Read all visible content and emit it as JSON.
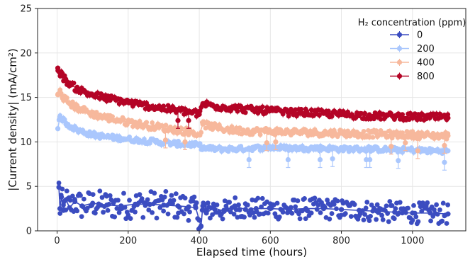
{
  "chart_data": {
    "type": "scatter",
    "xlabel": "Elapsed time (hours)",
    "ylabel": "|Current density| (mA/cm²)",
    "xlim": [
      -55,
      1150
    ],
    "ylim": [
      0,
      25
    ],
    "x_ticks": [
      0,
      200,
      400,
      600,
      800,
      1000
    ],
    "y_ticks": [
      0,
      5,
      10,
      15,
      20,
      25
    ],
    "grid": true,
    "legend": {
      "title": "H₂ concentration (ppm)",
      "placement": "top-right"
    },
    "series": [
      {
        "name": "0",
        "color": "#3b4cc0",
        "x": [
          5,
          8,
          12,
          18,
          25,
          35,
          50,
          70,
          100,
          140,
          180,
          220,
          260,
          300,
          340,
          370,
          390,
          400,
          405,
          410,
          420,
          440,
          470,
          500,
          530,
          560,
          600,
          650,
          700,
          750,
          800,
          850,
          900,
          950,
          1000,
          1050,
          1100
        ],
        "y": [
          4.9,
          2.5,
          3.8,
          2.3,
          3.5,
          2.6,
          3.3,
          2.8,
          3.1,
          2.9,
          2.8,
          3.0,
          3.0,
          2.9,
          2.8,
          2.7,
          2.6,
          1.2,
          0.5,
          2.8,
          2.0,
          2.6,
          2.2,
          2.8,
          2.4,
          2.5,
          2.5,
          2.4,
          2.5,
          2.5,
          2.4,
          2.3,
          2.2,
          2.1,
          2.0,
          2.0,
          1.9
        ],
        "scatter_range": 1.2
      },
      {
        "name": "200",
        "color": "#aac7fd",
        "x": [
          2,
          8,
          15,
          25,
          40,
          60,
          90,
          130,
          180,
          230,
          280,
          330,
          380,
          400,
          410,
          450,
          500,
          550,
          600,
          650,
          700,
          750,
          800,
          850,
          900,
          950,
          1000,
          1050,
          1100
        ],
        "y": [
          11.5,
          12.8,
          12.6,
          12.1,
          11.7,
          11.3,
          10.9,
          10.6,
          10.4,
          10.2,
          10.0,
          9.8,
          9.7,
          9.6,
          9.3,
          9.2,
          9.2,
          9.3,
          9.4,
          9.3,
          9.3,
          9.3,
          9.2,
          9.2,
          9.2,
          9.1,
          9.1,
          9.0,
          9.0
        ],
        "outliers": [
          [
            540,
            8.0
          ],
          [
            650,
            8.0
          ],
          [
            740,
            8.0
          ],
          [
            775,
            8.1
          ],
          [
            870,
            8.0
          ],
          [
            880,
            8.0
          ],
          [
            960,
            7.9
          ],
          [
            1090,
            7.7
          ]
        ],
        "scatter_range": 0.3
      },
      {
        "name": "400",
        "color": "#f7b89c",
        "x": [
          2,
          8,
          15,
          25,
          40,
          60,
          90,
          130,
          180,
          230,
          280,
          330,
          380,
          400,
          410,
          450,
          500,
          550,
          600,
          650,
          700,
          750,
          800,
          850,
          900,
          950,
          1000,
          1050,
          1100
        ],
        "y": [
          15.3,
          15.6,
          15.1,
          14.7,
          14.2,
          13.8,
          13.3,
          12.8,
          12.4,
          12.0,
          11.7,
          11.4,
          11.1,
          10.8,
          12.0,
          11.6,
          11.3,
          11.2,
          11.2,
          11.1,
          11.1,
          11.0,
          11.0,
          10.9,
          10.9,
          10.8,
          10.8,
          10.7,
          10.7
        ],
        "outliers": [
          [
            305,
            10.2
          ],
          [
            360,
            10.0
          ],
          [
            590,
            9.9
          ],
          [
            615,
            10.0
          ],
          [
            940,
            9.5
          ],
          [
            980,
            9.9
          ],
          [
            1015,
            9.0
          ],
          [
            1090,
            9.6
          ]
        ],
        "scatter_range": 0.4
      },
      {
        "name": "800",
        "color": "#b40426",
        "x": [
          2,
          8,
          15,
          25,
          40,
          60,
          90,
          130,
          180,
          230,
          280,
          330,
          380,
          400,
          410,
          450,
          500,
          550,
          600,
          650,
          700,
          750,
          800,
          850,
          900,
          950,
          1000,
          1050,
          1100
        ],
        "y": [
          18.3,
          17.8,
          17.4,
          16.9,
          16.4,
          15.9,
          15.4,
          15.0,
          14.6,
          14.2,
          13.9,
          13.6,
          13.3,
          13.1,
          14.3,
          14.0,
          13.8,
          13.6,
          13.5,
          13.3,
          13.3,
          13.2,
          13.1,
          13.0,
          12.9,
          12.9,
          12.8,
          12.8,
          12.7
        ],
        "outliers": [
          [
            340,
            12.4
          ],
          [
            370,
            12.4
          ]
        ],
        "scatter_range": 0.4
      }
    ]
  }
}
